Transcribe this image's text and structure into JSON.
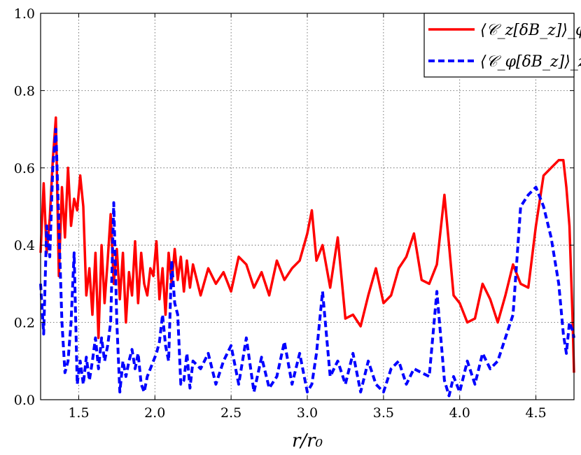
{
  "chart_data": {
    "type": "line",
    "xlabel": "r/r₀",
    "ylabel": "",
    "xlim": [
      1.25,
      4.75
    ],
    "ylim": [
      0.0,
      1.0
    ],
    "xticks": [
      "1.5",
      "2.0",
      "2.5",
      "3.0",
      "3.5",
      "4.0",
      "4.5"
    ],
    "yticks": [
      "0.0",
      "0.2",
      "0.4",
      "0.6",
      "0.8",
      "1.0"
    ],
    "grid": true,
    "legend_position": "top-right",
    "series": [
      {
        "name": "⟨𝒞_z[δB_z]⟩_φ",
        "color": "#ff0000",
        "style": "solid",
        "x": [
          1.25,
          1.27,
          1.29,
          1.31,
          1.33,
          1.35,
          1.37,
          1.39,
          1.41,
          1.43,
          1.45,
          1.47,
          1.49,
          1.51,
          1.53,
          1.55,
          1.57,
          1.59,
          1.61,
          1.63,
          1.65,
          1.67,
          1.69,
          1.71,
          1.73,
          1.75,
          1.77,
          1.79,
          1.81,
          1.83,
          1.85,
          1.87,
          1.89,
          1.91,
          1.93,
          1.95,
          1.97,
          1.99,
          2.01,
          2.03,
          2.05,
          2.07,
          2.09,
          2.11,
          2.13,
          2.15,
          2.17,
          2.19,
          2.21,
          2.23,
          2.25,
          2.3,
          2.35,
          2.4,
          2.45,
          2.5,
          2.55,
          2.6,
          2.65,
          2.7,
          2.75,
          2.8,
          2.85,
          2.9,
          2.95,
          3.0,
          3.03,
          3.06,
          3.1,
          3.15,
          3.2,
          3.25,
          3.3,
          3.35,
          3.4,
          3.45,
          3.5,
          3.55,
          3.6,
          3.65,
          3.7,
          3.75,
          3.8,
          3.85,
          3.9,
          3.93,
          3.96,
          4.0,
          4.05,
          4.1,
          4.15,
          4.2,
          4.25,
          4.3,
          4.35,
          4.4,
          4.45,
          4.5,
          4.55,
          4.6,
          4.65,
          4.68,
          4.7,
          4.72,
          4.74,
          4.75
        ],
        "y": [
          0.38,
          0.56,
          0.38,
          0.47,
          0.62,
          0.73,
          0.32,
          0.55,
          0.42,
          0.6,
          0.45,
          0.52,
          0.49,
          0.58,
          0.5,
          0.27,
          0.34,
          0.22,
          0.38,
          0.16,
          0.4,
          0.25,
          0.36,
          0.48,
          0.3,
          0.39,
          0.26,
          0.38,
          0.2,
          0.33,
          0.27,
          0.41,
          0.25,
          0.38,
          0.3,
          0.27,
          0.34,
          0.32,
          0.41,
          0.26,
          0.34,
          0.22,
          0.38,
          0.3,
          0.39,
          0.31,
          0.37,
          0.28,
          0.36,
          0.29,
          0.35,
          0.27,
          0.34,
          0.3,
          0.33,
          0.28,
          0.37,
          0.35,
          0.29,
          0.33,
          0.27,
          0.36,
          0.31,
          0.34,
          0.36,
          0.43,
          0.49,
          0.36,
          0.4,
          0.29,
          0.42,
          0.21,
          0.22,
          0.19,
          0.27,
          0.34,
          0.25,
          0.27,
          0.34,
          0.37,
          0.43,
          0.31,
          0.3,
          0.35,
          0.53,
          0.4,
          0.27,
          0.25,
          0.2,
          0.21,
          0.3,
          0.26,
          0.2,
          0.27,
          0.35,
          0.3,
          0.29,
          0.45,
          0.58,
          0.6,
          0.62,
          0.62,
          0.55,
          0.45,
          0.22,
          0.07
        ]
      },
      {
        "name": "⟨𝒞_φ[δB_z]⟩_z",
        "color": "#0000ff",
        "style": "dashed",
        "x": [
          1.25,
          1.27,
          1.29,
          1.31,
          1.33,
          1.35,
          1.37,
          1.39,
          1.41,
          1.43,
          1.45,
          1.47,
          1.49,
          1.51,
          1.53,
          1.55,
          1.57,
          1.59,
          1.61,
          1.63,
          1.65,
          1.67,
          1.69,
          1.71,
          1.73,
          1.75,
          1.77,
          1.79,
          1.81,
          1.83,
          1.85,
          1.87,
          1.89,
          1.91,
          1.93,
          1.95,
          1.97,
          1.99,
          2.01,
          2.03,
          2.05,
          2.07,
          2.09,
          2.11,
          2.13,
          2.15,
          2.17,
          2.19,
          2.21,
          2.23,
          2.25,
          2.3,
          2.35,
          2.4,
          2.45,
          2.5,
          2.55,
          2.6,
          2.65,
          2.7,
          2.75,
          2.8,
          2.85,
          2.9,
          2.95,
          3.0,
          3.03,
          3.06,
          3.1,
          3.15,
          3.2,
          3.25,
          3.3,
          3.35,
          3.4,
          3.45,
          3.5,
          3.55,
          3.6,
          3.65,
          3.7,
          3.75,
          3.8,
          3.85,
          3.9,
          3.93,
          3.96,
          4.0,
          4.05,
          4.1,
          4.15,
          4.2,
          4.25,
          4.3,
          4.35,
          4.4,
          4.45,
          4.5,
          4.55,
          4.6,
          4.65,
          4.68,
          4.7,
          4.72,
          4.74,
          4.75
        ],
        "y": [
          0.3,
          0.17,
          0.45,
          0.37,
          0.6,
          0.7,
          0.45,
          0.2,
          0.07,
          0.1,
          0.2,
          0.38,
          0.04,
          0.1,
          0.04,
          0.11,
          0.05,
          0.1,
          0.16,
          0.08,
          0.16,
          0.1,
          0.14,
          0.2,
          0.51,
          0.2,
          0.02,
          0.1,
          0.06,
          0.1,
          0.13,
          0.08,
          0.12,
          0.04,
          0.02,
          0.06,
          0.08,
          0.1,
          0.12,
          0.15,
          0.22,
          0.14,
          0.1,
          0.36,
          0.25,
          0.22,
          0.04,
          0.05,
          0.12,
          0.03,
          0.1,
          0.08,
          0.12,
          0.04,
          0.1,
          0.14,
          0.04,
          0.16,
          0.02,
          0.11,
          0.03,
          0.06,
          0.15,
          0.04,
          0.12,
          0.02,
          0.04,
          0.12,
          0.28,
          0.06,
          0.1,
          0.04,
          0.12,
          0.02,
          0.1,
          0.04,
          0.02,
          0.08,
          0.1,
          0.04,
          0.08,
          0.07,
          0.06,
          0.28,
          0.05,
          0.01,
          0.06,
          0.02,
          0.1,
          0.04,
          0.12,
          0.08,
          0.1,
          0.16,
          0.22,
          0.5,
          0.53,
          0.55,
          0.5,
          0.42,
          0.3,
          0.17,
          0.12,
          0.2,
          0.18,
          0.16
        ]
      }
    ]
  }
}
